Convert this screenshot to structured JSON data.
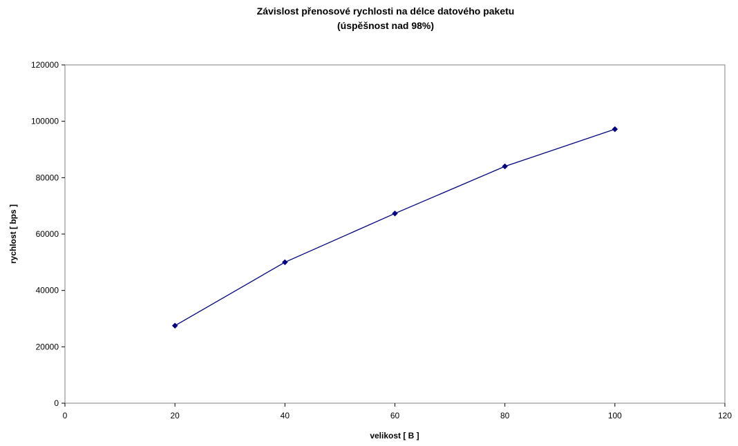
{
  "chart_data": {
    "type": "line",
    "title": "Závislost přenosové rychlosti na délce datového paketu",
    "subtitle": "(úspěšnost nad 98%)",
    "xlabel": "velikost  [ B ]",
    "ylabel": "rychlost  [ bps ]",
    "xlim": [
      0,
      120
    ],
    "ylim": [
      0,
      120000
    ],
    "xticks": [
      0,
      20,
      40,
      60,
      80,
      100,
      120
    ],
    "yticks": [
      0,
      20000,
      40000,
      60000,
      80000,
      100000,
      120000
    ],
    "grid": false,
    "legend": "none",
    "series": [
      {
        "color": "#000080",
        "marker": "diamond",
        "x": [
          20,
          40,
          60,
          80,
          100
        ],
        "y": [
          27500,
          50000,
          67300,
          84000,
          97200
        ]
      }
    ]
  }
}
